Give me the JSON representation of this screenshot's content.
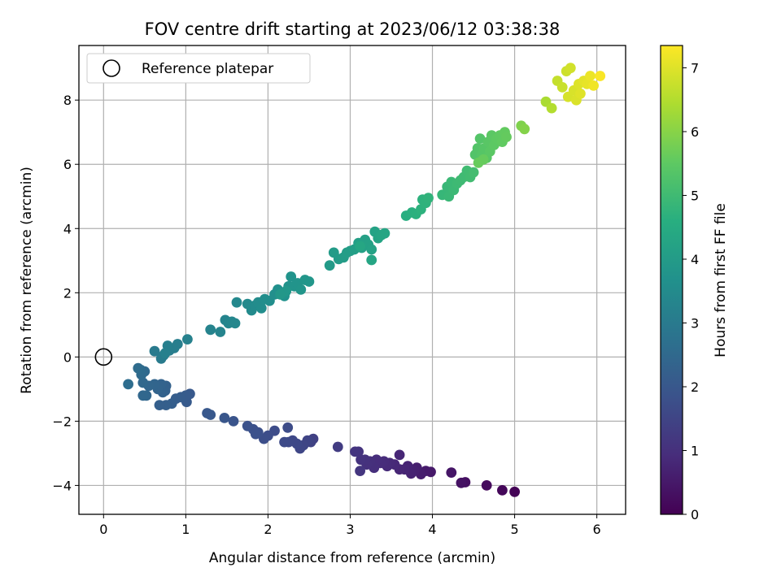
{
  "chart_data": {
    "type": "scatter",
    "title": "FOV centre drift starting at 2023/06/12 03:38:38",
    "xlabel": "Angular distance from reference (arcmin)",
    "ylabel": "Rotation from reference (arcmin)",
    "colorbar_label": "Hours from first FF file",
    "xlim": [
      -0.3,
      6.35
    ],
    "ylim": [
      -4.9,
      9.7
    ],
    "clim": [
      0,
      7.35
    ],
    "x_ticks": [
      0,
      1,
      2,
      3,
      4,
      5,
      6
    ],
    "y_ticks": [
      -4,
      -2,
      0,
      2,
      4,
      6,
      8
    ],
    "colorbar_ticks": [
      0,
      1,
      2,
      3,
      4,
      5,
      6,
      7
    ],
    "colormap": "viridis",
    "grid": true,
    "legend": {
      "placement": "upper-left",
      "entries": [
        "Reference platepar"
      ]
    },
    "reference_point": {
      "x": 0,
      "y": 0,
      "label": "Reference platepar"
    },
    "points": [
      [
        5.0,
        -4.2,
        0.05
      ],
      [
        4.85,
        -4.15,
        0.12
      ],
      [
        4.66,
        -4.0,
        0.2
      ],
      [
        4.4,
        -3.9,
        0.3
      ],
      [
        4.35,
        -3.92,
        0.35
      ],
      [
        4.23,
        -3.6,
        0.42
      ],
      [
        3.98,
        -3.58,
        0.5
      ],
      [
        3.92,
        -3.55,
        0.55
      ],
      [
        3.86,
        -3.65,
        0.6
      ],
      [
        3.81,
        -3.45,
        0.62
      ],
      [
        3.78,
        -3.55,
        0.66
      ],
      [
        3.74,
        -3.63,
        0.7
      ],
      [
        3.7,
        -3.4,
        0.72
      ],
      [
        3.66,
        -3.5,
        0.75
      ],
      [
        3.6,
        -3.5,
        0.78
      ],
      [
        3.6,
        -3.05,
        0.8
      ],
      [
        3.54,
        -3.35,
        0.82
      ],
      [
        3.48,
        -3.3,
        0.85
      ],
      [
        3.45,
        -3.4,
        0.88
      ],
      [
        3.41,
        -3.25,
        0.9
      ],
      [
        3.37,
        -3.3,
        0.92
      ],
      [
        3.32,
        -3.2,
        0.95
      ],
      [
        3.29,
        -3.45,
        0.97
      ],
      [
        3.24,
        -3.25,
        1.0
      ],
      [
        3.2,
        -3.35,
        1.02
      ],
      [
        3.18,
        -3.2,
        1.05
      ],
      [
        3.13,
        -3.2,
        1.08
      ],
      [
        3.1,
        -2.95,
        1.1
      ],
      [
        3.06,
        -2.95,
        1.12
      ],
      [
        3.12,
        -3.55,
        1.15
      ],
      [
        2.85,
        -2.8,
        1.3
      ],
      [
        2.55,
        -2.55,
        1.4
      ],
      [
        2.52,
        -2.65,
        1.45
      ],
      [
        2.48,
        -2.6,
        1.5
      ],
      [
        2.43,
        -2.75,
        1.52
      ],
      [
        2.39,
        -2.85,
        1.55
      ],
      [
        2.35,
        -2.7,
        1.58
      ],
      [
        2.3,
        -2.6,
        1.6
      ],
      [
        2.25,
        -2.65,
        1.62
      ],
      [
        2.2,
        -2.65,
        1.65
      ],
      [
        2.24,
        -2.2,
        1.68
      ],
      [
        2.08,
        -2.3,
        1.7
      ],
      [
        2.0,
        -2.45,
        1.72
      ],
      [
        1.95,
        -2.55,
        1.75
      ],
      [
        1.88,
        -2.35,
        1.78
      ],
      [
        1.82,
        -2.25,
        1.8
      ],
      [
        1.85,
        -2.4,
        1.82
      ],
      [
        1.75,
        -2.15,
        1.85
      ],
      [
        1.58,
        -2.0,
        1.9
      ],
      [
        1.47,
        -1.9,
        1.95
      ],
      [
        1.3,
        -1.8,
        2.0
      ],
      [
        1.26,
        -1.75,
        2.02
      ],
      [
        1.05,
        -1.15,
        2.05
      ],
      [
        1.01,
        -1.4,
        2.08
      ],
      [
        1.0,
        -1.2,
        2.1
      ],
      [
        0.94,
        -1.25,
        2.12
      ],
      [
        0.88,
        -1.3,
        2.15
      ],
      [
        0.83,
        -1.45,
        2.18
      ],
      [
        0.76,
        -1.5,
        2.2
      ],
      [
        0.68,
        -1.5,
        2.22
      ],
      [
        0.75,
        -1.05,
        2.25
      ],
      [
        0.76,
        -0.9,
        2.28
      ],
      [
        0.72,
        -1.1,
        2.3
      ],
      [
        0.7,
        -0.85,
        2.32
      ],
      [
        0.66,
        -1.0,
        2.35
      ],
      [
        0.62,
        -0.85,
        2.38
      ],
      [
        0.55,
        -0.9,
        2.4
      ],
      [
        0.52,
        -1.2,
        2.42
      ],
      [
        0.48,
        -1.2,
        2.45
      ],
      [
        0.48,
        -0.8,
        2.48
      ],
      [
        0.5,
        -0.45,
        2.5
      ],
      [
        0.46,
        -0.55,
        2.52
      ],
      [
        0.45,
        -0.4,
        2.55
      ],
      [
        0.42,
        -0.35,
        2.58
      ],
      [
        0.3,
        -0.85,
        2.62
      ],
      [
        0.62,
        0.18,
        3.0
      ],
      [
        0.7,
        -0.05,
        3.02
      ],
      [
        0.73,
        0.05,
        3.05
      ],
      [
        0.8,
        0.2,
        3.08
      ],
      [
        0.86,
        0.28,
        3.1
      ],
      [
        0.9,
        0.4,
        3.12
      ],
      [
        0.78,
        0.35,
        3.15
      ],
      [
        0.75,
        0.12,
        3.17
      ],
      [
        1.02,
        0.55,
        3.2
      ],
      [
        1.3,
        0.85,
        3.25
      ],
      [
        1.42,
        0.78,
        3.28
      ],
      [
        1.48,
        1.15,
        3.3
      ],
      [
        1.52,
        1.05,
        3.32
      ],
      [
        1.56,
        1.1,
        3.35
      ],
      [
        1.6,
        1.05,
        3.38
      ],
      [
        1.62,
        1.7,
        3.4
      ],
      [
        1.75,
        1.65,
        3.45
      ],
      [
        1.8,
        1.45,
        3.47
      ],
      [
        1.84,
        1.6,
        3.5
      ],
      [
        1.88,
        1.7,
        3.52
      ],
      [
        1.92,
        1.52,
        3.55
      ],
      [
        1.96,
        1.8,
        3.58
      ],
      [
        2.02,
        1.75,
        3.6
      ],
      [
        2.08,
        1.95,
        3.62
      ],
      [
        2.12,
        2.1,
        3.65
      ],
      [
        2.16,
        2.0,
        3.68
      ],
      [
        2.2,
        1.9,
        3.7
      ],
      [
        2.25,
        2.2,
        3.72
      ],
      [
        2.28,
        2.5,
        3.74
      ],
      [
        2.32,
        2.2,
        3.76
      ],
      [
        2.36,
        2.3,
        3.78
      ],
      [
        2.4,
        2.1,
        3.8
      ],
      [
        2.45,
        2.4,
        3.82
      ],
      [
        2.5,
        2.35,
        3.84
      ],
      [
        2.22,
        2.05,
        3.86
      ],
      [
        2.15,
        1.95,
        3.88
      ],
      [
        2.75,
        2.85,
        3.95
      ],
      [
        2.8,
        3.25,
        3.98
      ],
      [
        2.86,
        3.05,
        4.0
      ],
      [
        2.92,
        3.1,
        4.02
      ],
      [
        2.96,
        3.25,
        4.05
      ],
      [
        3.0,
        3.3,
        4.07
      ],
      [
        3.05,
        3.35,
        4.1
      ],
      [
        3.1,
        3.55,
        4.12
      ],
      [
        3.14,
        3.4,
        4.14
      ],
      [
        3.18,
        3.65,
        4.16
      ],
      [
        3.22,
        3.5,
        4.18
      ],
      [
        3.26,
        3.35,
        4.2
      ],
      [
        3.3,
        3.9,
        4.22
      ],
      [
        3.34,
        3.7,
        4.25
      ],
      [
        3.38,
        3.8,
        4.28
      ],
      [
        3.42,
        3.85,
        4.3
      ],
      [
        3.26,
        3.02,
        4.32
      ],
      [
        3.12,
        3.45,
        4.35
      ],
      [
        3.68,
        4.4,
        4.6
      ],
      [
        3.75,
        4.5,
        4.62
      ],
      [
        3.8,
        4.45,
        4.65
      ],
      [
        3.86,
        4.6,
        4.68
      ],
      [
        3.88,
        4.9,
        4.7
      ],
      [
        3.92,
        4.8,
        4.72
      ],
      [
        3.95,
        4.95,
        4.74
      ],
      [
        4.12,
        5.05,
        4.85
      ],
      [
        4.18,
        5.3,
        4.88
      ],
      [
        4.2,
        5.0,
        4.9
      ],
      [
        4.23,
        5.45,
        4.92
      ],
      [
        4.26,
        5.2,
        4.94
      ],
      [
        4.3,
        5.4,
        4.96
      ],
      [
        4.34,
        5.5,
        4.98
      ],
      [
        4.38,
        5.6,
        5.0
      ],
      [
        4.42,
        5.8,
        5.02
      ],
      [
        4.46,
        5.6,
        5.05
      ],
      [
        4.5,
        5.75,
        5.08
      ],
      [
        4.52,
        6.3,
        5.3
      ],
      [
        4.55,
        6.5,
        5.32
      ],
      [
        4.58,
        6.8,
        5.34
      ],
      [
        4.6,
        6.3,
        5.36
      ],
      [
        4.63,
        6.5,
        5.38
      ],
      [
        4.66,
        6.2,
        5.4
      ],
      [
        4.68,
        6.7,
        5.42
      ],
      [
        4.7,
        6.4,
        5.44
      ],
      [
        4.72,
        6.9,
        5.46
      ],
      [
        4.75,
        6.6,
        5.48
      ],
      [
        4.78,
        6.8,
        5.5
      ],
      [
        4.82,
        6.9,
        5.52
      ],
      [
        4.85,
        6.7,
        5.54
      ],
      [
        4.88,
        7.0,
        5.56
      ],
      [
        4.9,
        6.85,
        5.58
      ],
      [
        4.62,
        6.15,
        5.6
      ],
      [
        4.56,
        6.05,
        5.62
      ],
      [
        5.08,
        7.2,
        5.9
      ],
      [
        5.12,
        7.1,
        5.95
      ],
      [
        5.38,
        7.95,
        6.4
      ],
      [
        5.45,
        7.75,
        6.5
      ],
      [
        5.52,
        8.6,
        6.7
      ],
      [
        5.58,
        8.4,
        6.75
      ],
      [
        5.63,
        8.9,
        6.8
      ],
      [
        5.68,
        9.0,
        6.85
      ],
      [
        5.65,
        8.1,
        6.9
      ],
      [
        5.72,
        8.3,
        6.92
      ],
      [
        5.75,
        8.0,
        6.95
      ],
      [
        5.78,
        8.5,
        6.98
      ],
      [
        5.8,
        8.2,
        7.0
      ],
      [
        5.84,
        8.6,
        7.05
      ],
      [
        5.88,
        8.5,
        7.1
      ],
      [
        5.92,
        8.75,
        7.15
      ],
      [
        5.96,
        8.45,
        7.2
      ],
      [
        6.04,
        8.75,
        7.3
      ]
    ]
  }
}
